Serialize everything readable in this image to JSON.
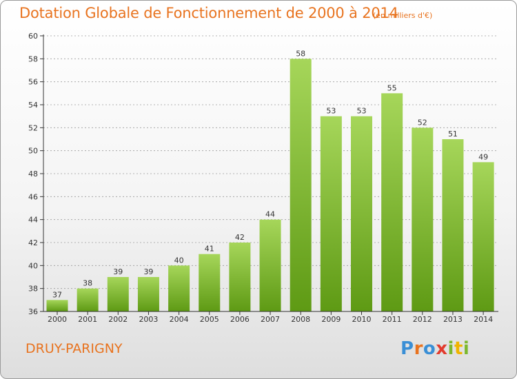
{
  "header": {
    "title": "Dotation Globale de Fonctionnement de 2000 à 2014",
    "unit": "(en milliers d'€)"
  },
  "footer": {
    "commune": "DRUY-PARIGNY",
    "logo_text": "Proxiti",
    "logo_colors": [
      "#3a8fd6",
      "#e8731f",
      "#3a8fd6",
      "#e23b2e",
      "#7cb82f",
      "#f0b400",
      "#7cb82f"
    ]
  },
  "colors": {
    "bar_top": "#a6d65a",
    "bar_bottom": "#5e9a14",
    "axis": "#333333",
    "grid": "#9a9a9a",
    "text": "#333333",
    "accent": "#e8731f"
  },
  "chart_data": {
    "type": "bar",
    "title": "Dotation Globale de Fonctionnement de 2000 à 2014",
    "subtitle": "(en milliers d'€)",
    "xlabel": "",
    "ylabel": "",
    "categories": [
      "2000",
      "2001",
      "2002",
      "2003",
      "2004",
      "2005",
      "2006",
      "2007",
      "2008",
      "2009",
      "2010",
      "2011",
      "2012",
      "2013",
      "2014"
    ],
    "values": [
      37,
      38,
      39,
      39,
      40,
      41,
      42,
      44,
      58,
      53,
      53,
      55,
      52,
      51,
      49
    ],
    "ylim": [
      36,
      60
    ],
    "yticks": [
      36,
      38,
      40,
      42,
      44,
      46,
      48,
      50,
      52,
      54,
      56,
      58,
      60
    ],
    "grid": true,
    "data_labels": true
  }
}
